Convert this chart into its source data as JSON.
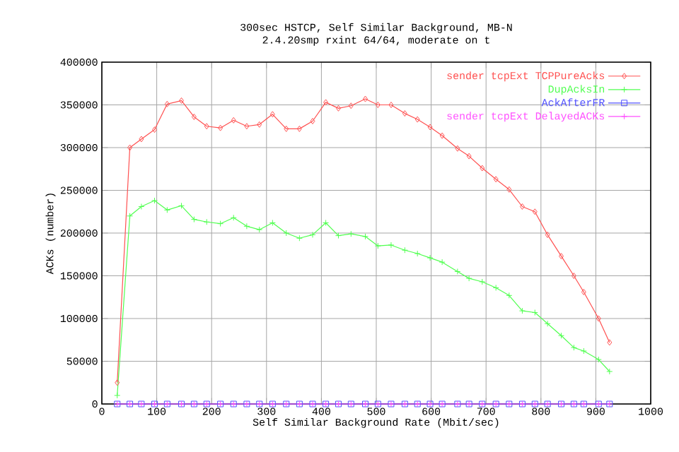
{
  "chart_data": {
    "type": "line",
    "title": "300sec HSTCP, Self Similar Background, MB-N",
    "subtitle": "2.4.20smp rxint 64/64, moderate on t",
    "xlabel": "Self Similar Background Rate (Mbit/sec)",
    "ylabel": "ACKs (number)",
    "x": [
      28,
      51,
      72,
      96,
      119,
      145,
      168,
      191,
      216,
      240,
      264,
      287,
      311,
      336,
      360,
      384,
      408,
      431,
      454,
      480,
      503,
      527,
      552,
      575,
      598,
      620,
      648,
      669,
      693,
      718,
      742,
      766,
      789,
      812,
      837,
      860,
      878,
      905,
      925
    ],
    "series": [
      {
        "name": "sender tcpExt TCPPureAcks",
        "color": "#ff5050",
        "marker": "diamond",
        "values": [
          25000,
          300000,
          310000,
          321000,
          351000,
          355000,
          336000,
          325000,
          323000,
          332000,
          325000,
          327000,
          339000,
          322000,
          322000,
          331000,
          353000,
          346000,
          349000,
          357000,
          350000,
          350000,
          340000,
          333000,
          324000,
          314000,
          299000,
          290000,
          276000,
          263000,
          251000,
          231000,
          225000,
          198000,
          173000,
          150000,
          131000,
          100000,
          72000
        ]
      },
      {
        "name": "DupAcksIn",
        "color": "#50ff50",
        "marker": "cross",
        "values": [
          10000,
          220000,
          231000,
          238000,
          227000,
          232000,
          216000,
          213000,
          211000,
          218000,
          208000,
          204000,
          212000,
          200000,
          194000,
          198000,
          212000,
          197000,
          199000,
          196000,
          185000,
          186000,
          180000,
          176000,
          171000,
          166000,
          155000,
          147000,
          143000,
          136000,
          127000,
          109000,
          107000,
          94000,
          80000,
          66000,
          62000,
          52000,
          38000
        ]
      },
      {
        "name": "AckAfterFR",
        "color": "#5050ff",
        "marker": "square",
        "values": [
          0,
          0,
          0,
          0,
          0,
          0,
          0,
          0,
          0,
          0,
          0,
          0,
          0,
          0,
          0,
          0,
          0,
          0,
          0,
          0,
          0,
          0,
          0,
          0,
          0,
          0,
          0,
          0,
          0,
          0,
          0,
          0,
          0,
          0,
          0,
          0,
          0,
          0,
          0
        ]
      },
      {
        "name": "sender tcpExt DelayedACKs",
        "color": "#ff50ff",
        "marker": "cross",
        "values": [
          0,
          0,
          0,
          0,
          0,
          0,
          0,
          0,
          0,
          0,
          0,
          0,
          0,
          0,
          0,
          0,
          0,
          0,
          0,
          0,
          0,
          0,
          0,
          0,
          0,
          0,
          0,
          0,
          0,
          0,
          0,
          0,
          0,
          0,
          0,
          0,
          0,
          0,
          0
        ]
      }
    ],
    "xlim": [
      0,
      1000
    ],
    "xticks": [
      0,
      100,
      200,
      300,
      400,
      500,
      600,
      700,
      800,
      900,
      1000
    ],
    "ylim": [
      0,
      400000
    ],
    "yticks": [
      0,
      50000,
      100000,
      150000,
      200000,
      250000,
      300000,
      350000,
      400000
    ],
    "grid": true,
    "legend": "top right",
    "line_style": "solid"
  }
}
